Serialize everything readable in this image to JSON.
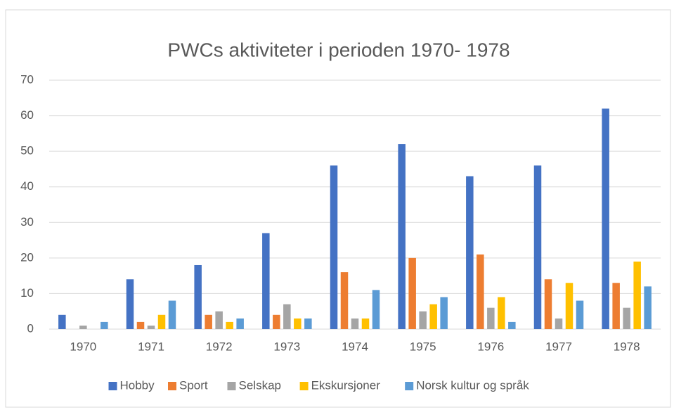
{
  "chart_data": {
    "type": "bar",
    "title": "PWCs aktiviteter i perioden 1970- 1978",
    "categories": [
      "1970",
      "1971",
      "1972",
      "1973",
      "1974",
      "1975",
      "1976",
      "1977",
      "1978"
    ],
    "series": [
      {
        "name": "Hobby",
        "color": "#4472c4",
        "values": [
          4,
          14,
          18,
          27,
          46,
          52,
          43,
          46,
          62
        ]
      },
      {
        "name": "Sport",
        "color": "#ed7d31",
        "values": [
          0,
          2,
          4,
          4,
          16,
          20,
          21,
          14,
          13
        ]
      },
      {
        "name": "Selskap",
        "color": "#a5a5a5",
        "values": [
          1,
          1,
          5,
          7,
          3,
          5,
          6,
          3,
          6
        ]
      },
      {
        "name": "Ekskursjoner",
        "color": "#ffc000",
        "values": [
          0,
          4,
          2,
          3,
          3,
          7,
          9,
          13,
          19
        ]
      },
      {
        "name": "Norsk kultur og språk",
        "color": "#5b9bd5",
        "values": [
          2,
          8,
          3,
          3,
          11,
          9,
          2,
          8,
          12
        ]
      }
    ],
    "ylim": [
      0,
      70
    ],
    "yticks": [
      0,
      10,
      20,
      30,
      40,
      50,
      60,
      70
    ],
    "grid": true,
    "legend": "bottom"
  }
}
